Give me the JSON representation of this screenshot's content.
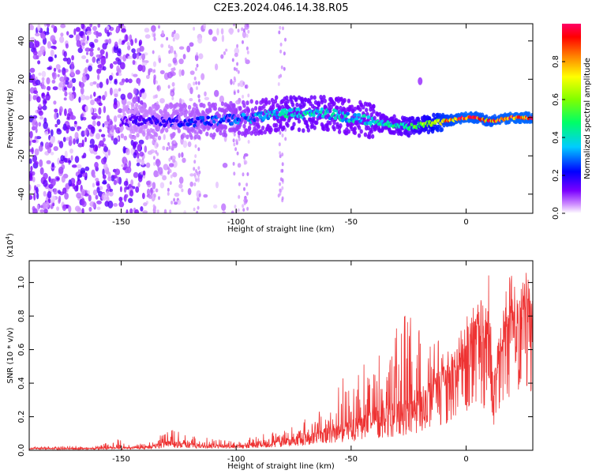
{
  "title": "C2E3.2024.046.14.38.R05",
  "chart_data": [
    {
      "type": "heatmap",
      "title": "C2E3.2024.046.14.38.R05",
      "xlabel": "Height of straight line (km)",
      "ylabel": "Frequency (Hz)",
      "xlim": [
        -190,
        29
      ],
      "ylim": [
        -50,
        49
      ],
      "xticks": [
        -150,
        -100,
        -50,
        0
      ],
      "yticks": [
        -40,
        -20,
        0,
        20,
        40
      ],
      "colorbar": {
        "label": "Normalized spectral amplitude",
        "range": [
          0.0,
          1.0
        ],
        "ticks": [
          "0.0",
          "0.2",
          "0.4",
          "0.6",
          "0.8"
        ],
        "colormap": [
          "#ffffff",
          "#cc88ff",
          "#7a00ff",
          "#0000ff",
          "#00ccff",
          "#00ff66",
          "#80ff00",
          "#ffff00",
          "#ff8000",
          "#ff0000",
          "#ff0066"
        ]
      },
      "ridge": [
        {
          "x": -150,
          "y": -2
        },
        {
          "x": -120,
          "y": -2
        },
        {
          "x": -100,
          "y": -1
        },
        {
          "x": -80,
          "y": 2
        },
        {
          "x": -60,
          "y": 2
        },
        {
          "x": -45,
          "y": -1
        },
        {
          "x": -35,
          "y": -3
        },
        {
          "x": -25,
          "y": -5
        },
        {
          "x": -15,
          "y": -3
        },
        {
          "x": -5,
          "y": -1
        },
        {
          "x": 0,
          "y": 0
        },
        {
          "x": 5,
          "y": 0
        },
        {
          "x": 10,
          "y": -2
        },
        {
          "x": 20,
          "y": 0
        },
        {
          "x": 29,
          "y": 0
        }
      ],
      "ridge_amplitude": [
        {
          "x": -150,
          "v": 0.15
        },
        {
          "x": -100,
          "v": 0.3
        },
        {
          "x": -75,
          "v": 0.45
        },
        {
          "x": -50,
          "v": 0.4
        },
        {
          "x": -30,
          "v": 0.45
        },
        {
          "x": -20,
          "v": 0.6
        },
        {
          "x": -10,
          "v": 0.85
        },
        {
          "x": 0,
          "v": 0.95
        },
        {
          "x": 10,
          "v": 0.9
        },
        {
          "x": 20,
          "v": 0.95
        },
        {
          "x": 29,
          "v": 0.95
        }
      ],
      "isolated_blob": {
        "x": -20,
        "y": 19,
        "v": 0.08
      }
    },
    {
      "type": "line",
      "xlabel": "Height of straight line (km)",
      "ylabel": "SNR (10 * v/v)",
      "y_multiplier": "(x10",
      "y_multiplier_exp": "4",
      "xlim": [
        -190,
        29
      ],
      "ylim": [
        0,
        1.13
      ],
      "xticks": [
        -150,
        -100,
        -50,
        0
      ],
      "yticks": [
        0.0,
        0.2,
        0.4,
        0.6,
        0.8,
        1.0
      ],
      "yticklabels": [
        "0.0",
        "0.2",
        "0.4",
        "0.6",
        "0.8",
        "1.0"
      ],
      "color": "#ee3333",
      "envelope": [
        {
          "x": -190,
          "base": 0.01,
          "spike": 0.02
        },
        {
          "x": -160,
          "base": 0.01,
          "spike": 0.03
        },
        {
          "x": -152,
          "base": 0.015,
          "spike": 0.07
        },
        {
          "x": -140,
          "base": 0.015,
          "spike": 0.04
        },
        {
          "x": -130,
          "base": 0.04,
          "spike": 0.13
        },
        {
          "x": -120,
          "base": 0.03,
          "spike": 0.09
        },
        {
          "x": -100,
          "base": 0.02,
          "spike": 0.05
        },
        {
          "x": -80,
          "base": 0.05,
          "spike": 0.14
        },
        {
          "x": -70,
          "base": 0.07,
          "spike": 0.2
        },
        {
          "x": -60,
          "base": 0.1,
          "spike": 0.32
        },
        {
          "x": -50,
          "base": 0.13,
          "spike": 0.5
        },
        {
          "x": -40,
          "base": 0.17,
          "spike": 0.52
        },
        {
          "x": -25,
          "base": 0.23,
          "spike": 0.85
        },
        {
          "x": -15,
          "base": 0.3,
          "spike": 0.7
        },
        {
          "x": -5,
          "base": 0.45,
          "spike": 0.62
        },
        {
          "x": 5,
          "base": 0.68,
          "spike": 0.85
        },
        {
          "x": 10,
          "base": 0.55,
          "spike": 1.13
        },
        {
          "x": 12,
          "base": 0.33,
          "spike": 0.55
        },
        {
          "x": 18,
          "base": 0.75,
          "spike": 0.9
        },
        {
          "x": 29,
          "base": 0.85,
          "spike": 0.97
        }
      ]
    }
  ]
}
